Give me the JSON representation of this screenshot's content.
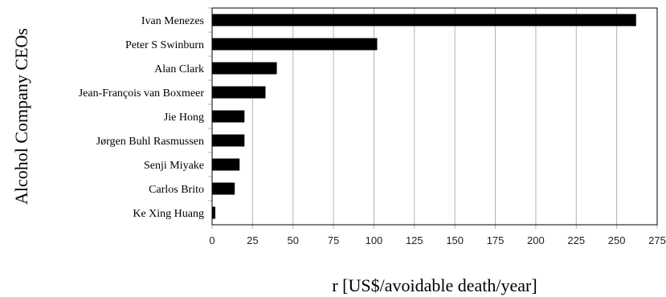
{
  "chart_data": {
    "type": "bar",
    "orientation": "horizontal",
    "categories": [
      "Ivan Menezes",
      "Peter S Swinburn",
      "Alan Clark",
      "Jean-François van Boxmeer",
      "Jie Hong",
      "Jørgen Buhl Rasmussen",
      "Senji Miyake",
      "Carlos Brito",
      "Ke Xing Huang"
    ],
    "values": [
      262,
      102,
      40,
      33,
      20,
      20,
      17,
      14,
      2
    ],
    "xlabel": "r [US$/avoidable death/year]",
    "ylabel": "Alcohol Company CEOs",
    "xlim": [
      0,
      275
    ],
    "xticks": [
      "0",
      "25",
      "50",
      "75",
      "100",
      "125",
      "150",
      "175",
      "200",
      "225",
      "250",
      "275"
    ],
    "grid": "vertical",
    "bar_color": "#000000"
  }
}
